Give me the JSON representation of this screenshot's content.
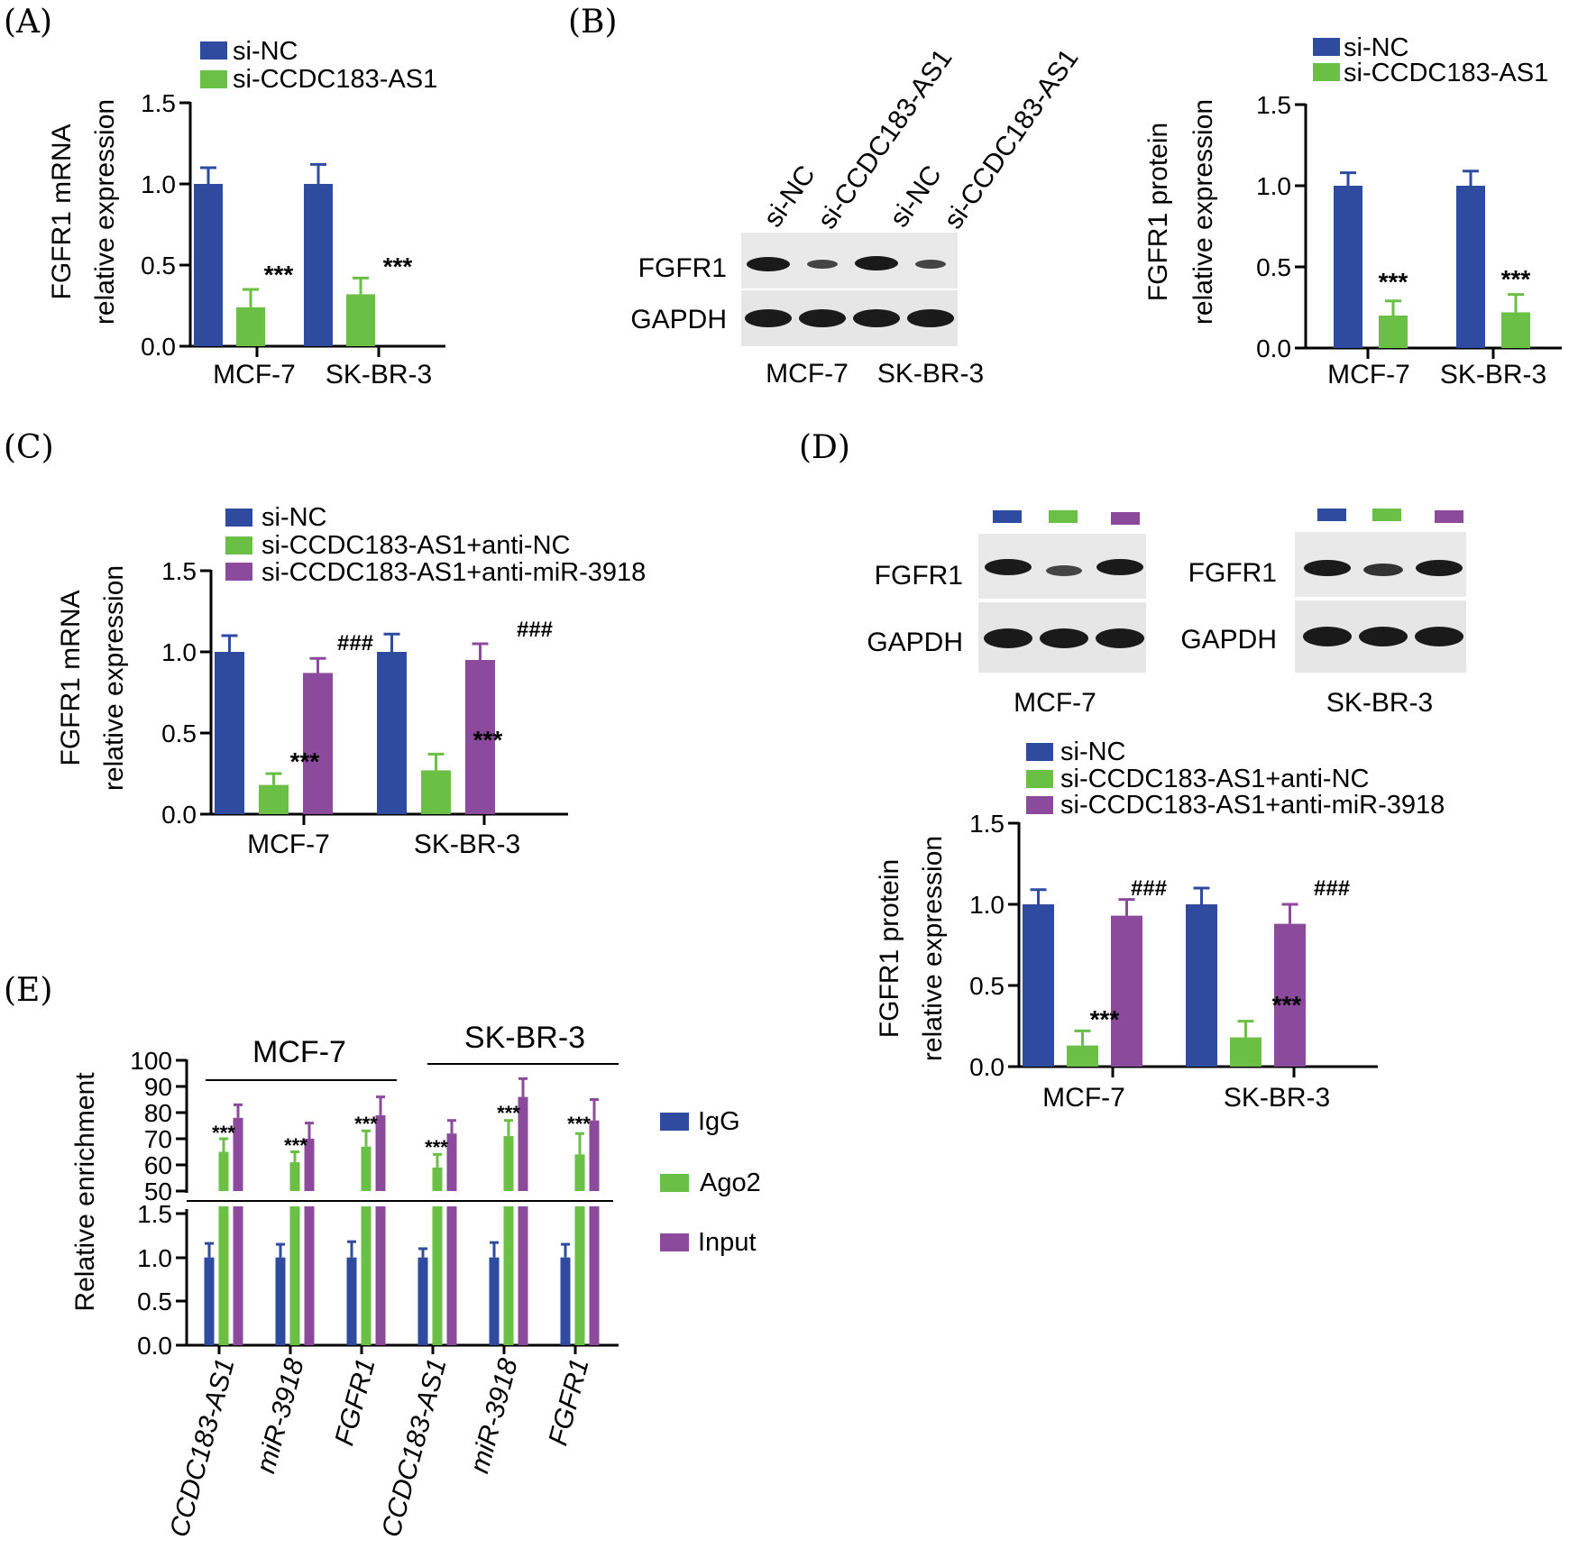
{
  "colors": {
    "blue": "#2E4BA0",
    "green": "#6ABF45",
    "purple": "#8B4A9C"
  },
  "panels": {
    "A": {
      "panel_label": "(A)",
      "legend": [
        "si-NC",
        "si-CCDC183-AS1"
      ],
      "y_ticks": [
        "1.5",
        "1.0",
        "0.5",
        "0.0"
      ],
      "ylabel_line1": "FGFR1 mRNA",
      "ylabel_line2": "relative expression",
      "categories": [
        "MCF-7",
        "SK-BR-3"
      ],
      "stars": [
        "***",
        "***"
      ]
    },
    "B": {
      "panel_label": "(B)",
      "blot_lanes": [
        "si-NC",
        "si-CCDC183-AS1",
        "si-NC",
        "si-CCDC183-AS1"
      ],
      "blot_rows": [
        "FGFR1",
        "GAPDH"
      ],
      "blot_cells": [
        "MCF-7",
        "SK-BR-3"
      ],
      "legend": [
        "si-NC",
        "si-CCDC183-AS1"
      ],
      "y_ticks": [
        "1.5",
        "1.0",
        "0.5",
        "0.0"
      ],
      "ylabel_line1": "FGFR1 protein",
      "ylabel_line2": "relative expression",
      "categories": [
        "MCF-7",
        "SK-BR-3"
      ],
      "stars": [
        "***",
        "***"
      ]
    },
    "C": {
      "panel_label": "(C)",
      "legend": [
        "si-NC",
        "si-CCDC183-AS1+anti-NC",
        "si-CCDC183-AS1+anti-miR-3918"
      ],
      "y_ticks": [
        "1.5",
        "1.0",
        "0.5",
        "0.0"
      ],
      "ylabel_line1": "FGFR1 mRNA",
      "ylabel_line2": "relative expression",
      "categories": [
        "MCF-7",
        "SK-BR-3"
      ],
      "stars": [
        "***",
        "***"
      ],
      "hashes": [
        "###",
        "###"
      ]
    },
    "D": {
      "panel_label": "(D)",
      "blot_rows": [
        "FGFR1",
        "GAPDH"
      ],
      "blot_cells": [
        "MCF-7",
        "SK-BR-3"
      ],
      "legend": [
        "si-NC",
        "si-CCDC183-AS1+anti-NC",
        "si-CCDC183-AS1+anti-miR-3918"
      ],
      "y_ticks": [
        "1.5",
        "1.0",
        "0.5",
        "0.0"
      ],
      "ylabel_line1": "FGFR1 protein",
      "ylabel_line2": "relative expression",
      "categories": [
        "MCF-7",
        "SK-BR-3"
      ],
      "stars": [
        "***",
        "***"
      ],
      "hashes": [
        "###",
        "###"
      ]
    },
    "E": {
      "panel_label": "(E)",
      "group_labels": [
        "MCF-7",
        "SK-BR-3"
      ],
      "upper_ticks": [
        "100",
        "90",
        "80",
        "70",
        "60",
        "50"
      ],
      "lower_ticks": [
        "1.5",
        "1.0",
        "0.5",
        "0.0"
      ],
      "ylabel": "Relative enrichment",
      "genes": [
        "CCDC183-AS1",
        "miR-3918",
        "FGFR1",
        "CCDC183-AS1",
        "miR-3918",
        "FGFR1"
      ],
      "legend": [
        "IgG",
        "Ago2",
        "Input"
      ],
      "stars": [
        "***",
        "***",
        "***",
        "***",
        "***",
        "***"
      ]
    }
  },
  "chart_data": [
    {
      "id": "A",
      "type": "bar",
      "categories": [
        "MCF-7",
        "SK-BR-3"
      ],
      "series": [
        {
          "name": "si-NC",
          "values": [
            1.0,
            1.0
          ],
          "errors": [
            0.1,
            0.12
          ]
        },
        {
          "name": "si-CCDC183-AS1",
          "values": [
            0.24,
            0.32
          ],
          "errors": [
            0.11,
            0.1
          ]
        }
      ],
      "ylabel": "FGFR1 mRNA relative expression",
      "ylim": [
        0,
        1.5
      ]
    },
    {
      "id": "B",
      "type": "bar",
      "categories": [
        "MCF-7",
        "SK-BR-3"
      ],
      "series": [
        {
          "name": "si-NC",
          "values": [
            1.0,
            1.0
          ],
          "errors": [
            0.08,
            0.09
          ]
        },
        {
          "name": "si-CCDC183-AS1",
          "values": [
            0.2,
            0.22
          ],
          "errors": [
            0.09,
            0.11
          ]
        }
      ],
      "ylabel": "FGFR1 protein relative expression",
      "ylim": [
        0,
        1.5
      ]
    },
    {
      "id": "C",
      "type": "bar",
      "categories": [
        "MCF-7",
        "SK-BR-3"
      ],
      "series": [
        {
          "name": "si-NC",
          "values": [
            1.0,
            1.0
          ],
          "errors": [
            0.1,
            0.11
          ]
        },
        {
          "name": "si-CCDC183-AS1+anti-NC",
          "values": [
            0.18,
            0.27
          ],
          "errors": [
            0.07,
            0.1
          ]
        },
        {
          "name": "si-CCDC183-AS1+anti-miR-3918",
          "values": [
            0.87,
            0.95
          ],
          "errors": [
            0.09,
            0.1
          ]
        }
      ],
      "ylabel": "FGFR1 mRNA relative expression",
      "ylim": [
        0,
        1.5
      ]
    },
    {
      "id": "D",
      "type": "bar",
      "categories": [
        "MCF-7",
        "SK-BR-3"
      ],
      "series": [
        {
          "name": "si-NC",
          "values": [
            1.0,
            1.0
          ],
          "errors": [
            0.09,
            0.1
          ]
        },
        {
          "name": "si-CCDC183-AS1+anti-NC",
          "values": [
            0.13,
            0.18
          ],
          "errors": [
            0.09,
            0.1
          ]
        },
        {
          "name": "si-CCDC183-AS1+anti-miR-3918",
          "values": [
            0.93,
            0.88
          ],
          "errors": [
            0.1,
            0.12
          ]
        }
      ],
      "ylabel": "FGFR1 protein relative expression",
      "ylim": [
        0,
        1.5
      ]
    },
    {
      "id": "E",
      "type": "bar",
      "categories": [
        "CCDC183-AS1",
        "miR-3918",
        "FGFR1",
        "CCDC183-AS1",
        "miR-3918",
        "FGFR1"
      ],
      "series": [
        {
          "name": "IgG",
          "values": [
            1.0,
            1.0,
            1.0,
            1.0,
            1.0,
            1.0
          ],
          "errors": [
            0.16,
            0.15,
            0.18,
            0.1,
            0.17,
            0.15
          ]
        },
        {
          "name": "Ago2",
          "values": [
            65,
            61,
            67,
            59,
            71,
            64
          ],
          "errors": [
            5,
            4,
            6,
            5,
            6,
            8
          ]
        },
        {
          "name": "Input",
          "values": [
            78,
            70,
            79,
            72,
            86,
            77
          ],
          "errors": [
            5,
            6,
            7,
            5,
            7,
            8
          ]
        }
      ],
      "ylabel": "Relative enrichment",
      "ylim": [
        0,
        100
      ],
      "axis_break": [
        1.5,
        50
      ]
    }
  ]
}
